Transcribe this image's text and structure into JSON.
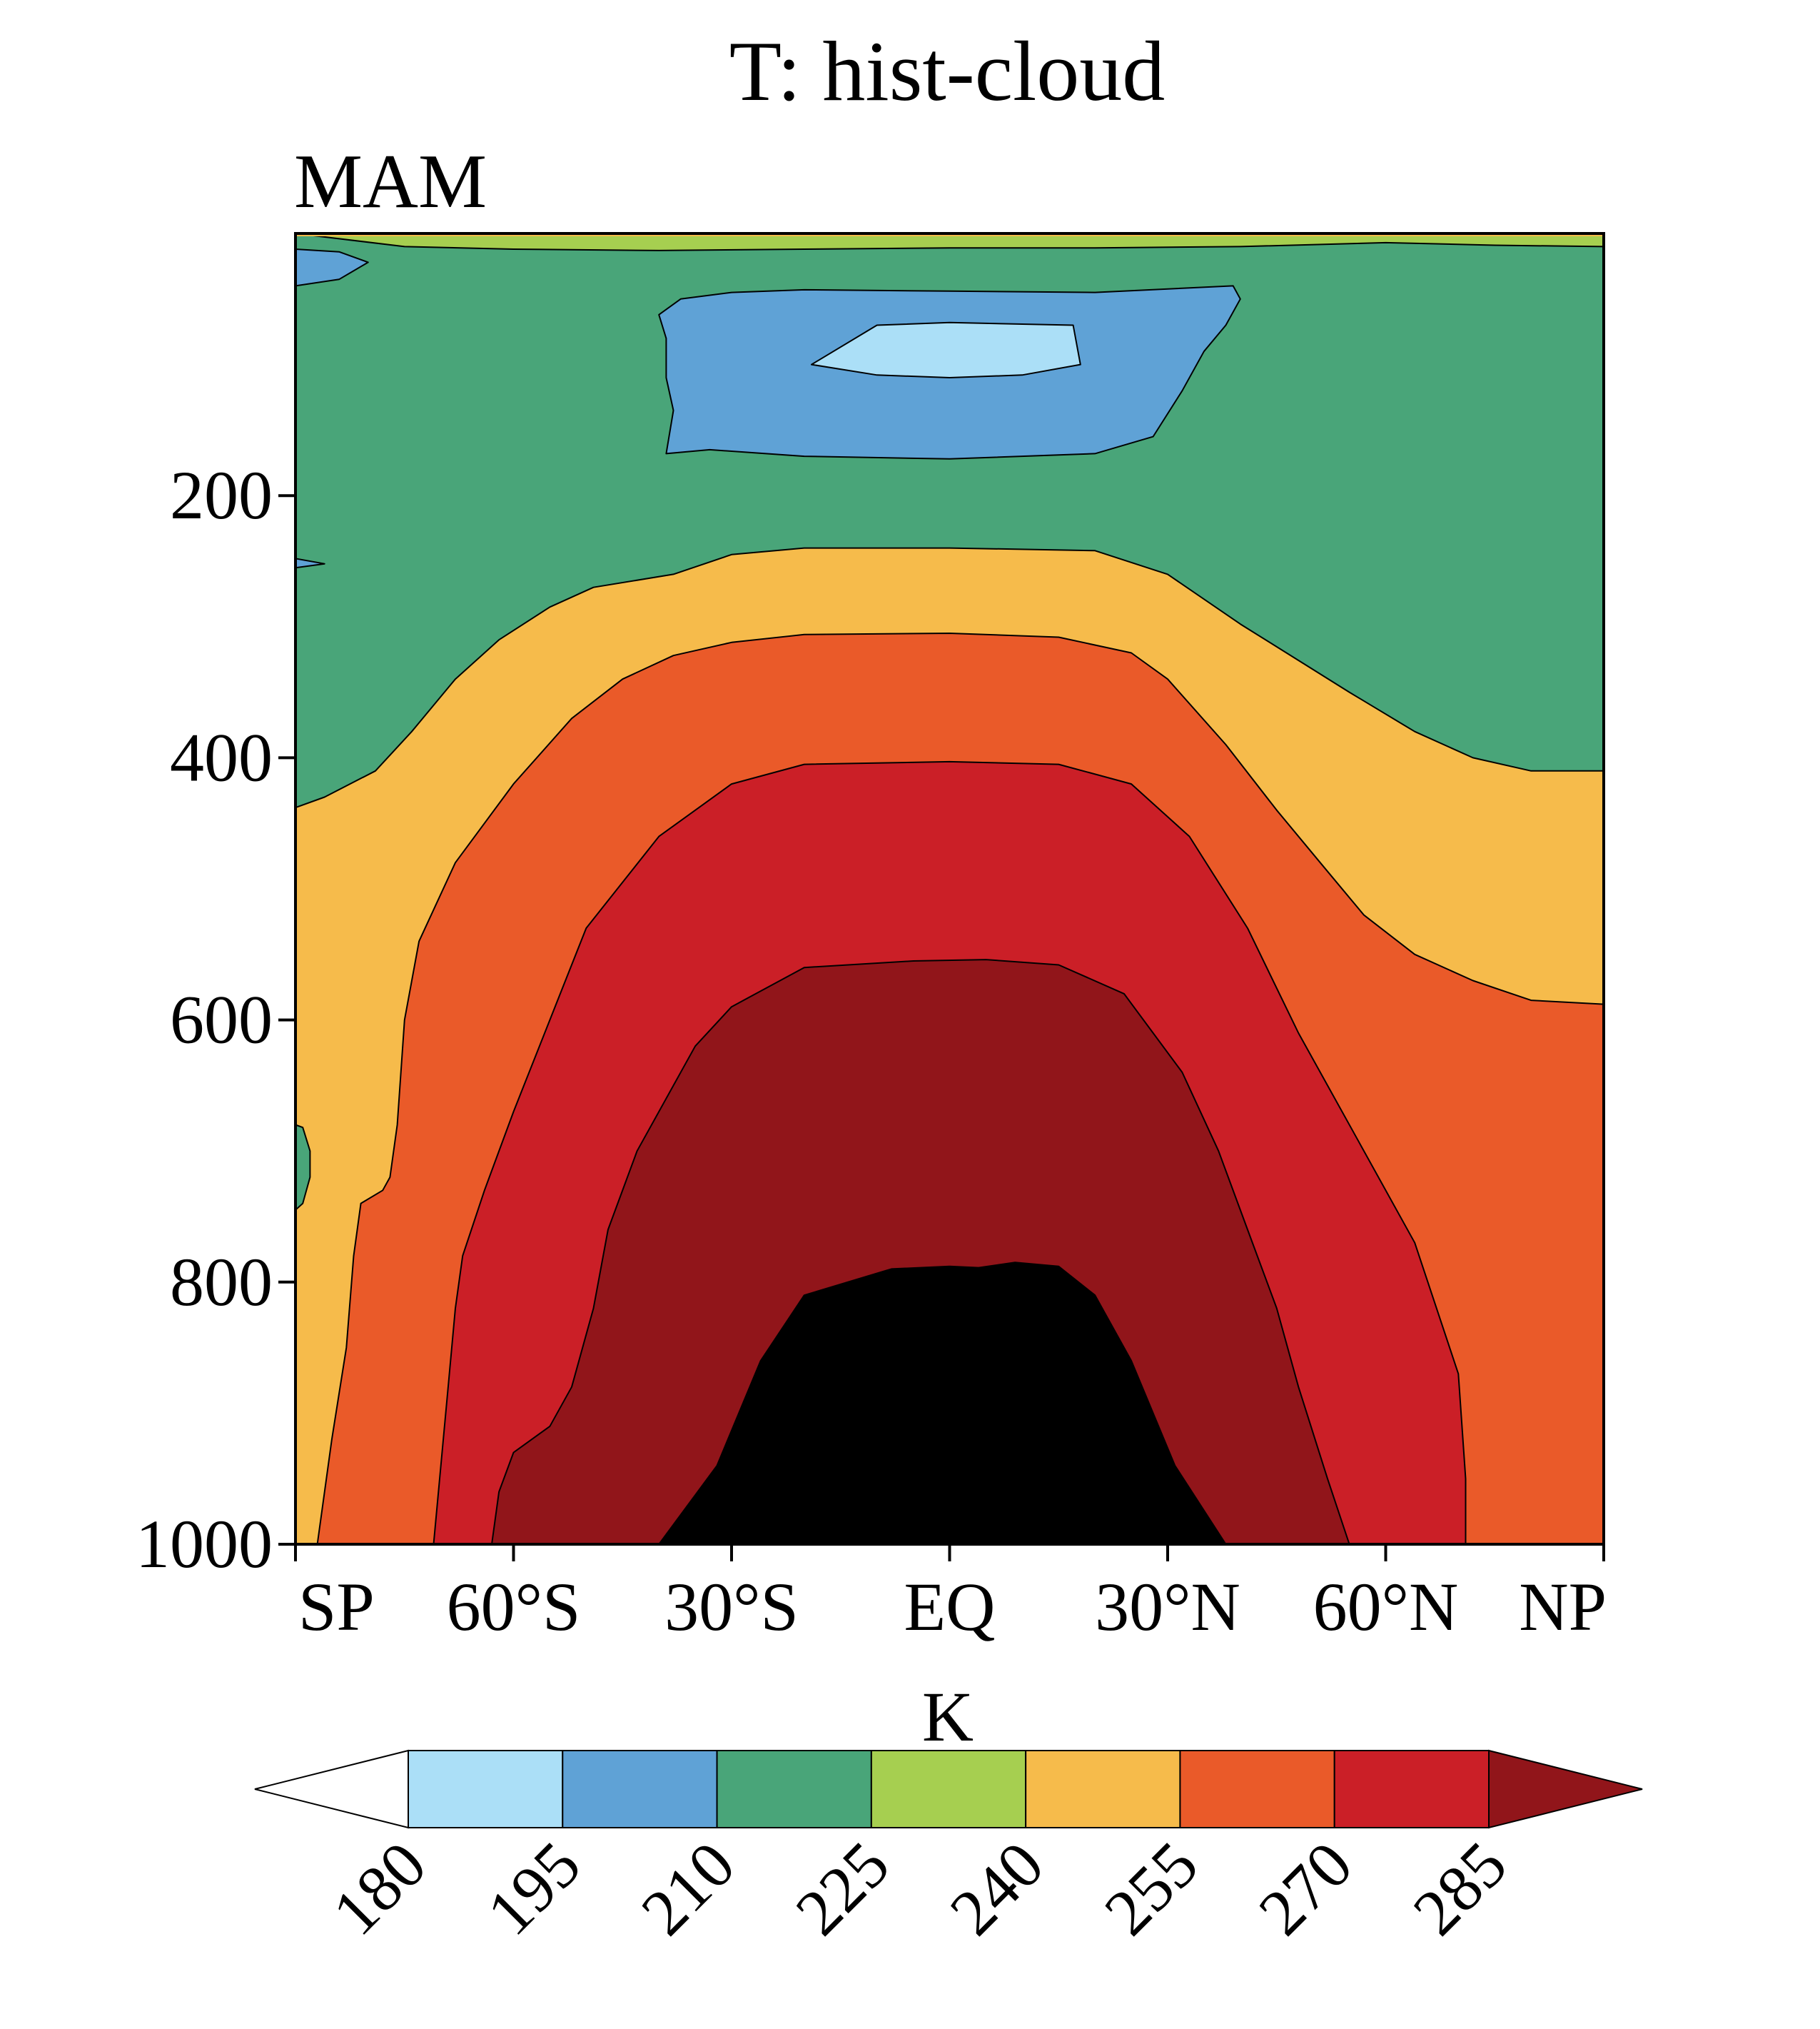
{
  "chart_data": {
    "type": "filled-contour",
    "title": "T: hist-cloud",
    "subtitle": "MAM",
    "ylabel": "",
    "xlabel": "",
    "y_axis": {
      "reversed": true,
      "range": [
        0,
        1000
      ],
      "ticks": [
        200,
        400,
        600,
        800,
        1000
      ]
    },
    "x_axis": {
      "range": [
        -90,
        90
      ],
      "ticks": [
        {
          "value": -90,
          "label": "SP"
        },
        {
          "value": -60,
          "label": "60°S"
        },
        {
          "value": -30,
          "label": "30°S"
        },
        {
          "value": 0,
          "label": "EQ"
        },
        {
          "value": 30,
          "label": "30°N"
        },
        {
          "value": 60,
          "label": "60°N"
        },
        {
          "value": 90,
          "label": "NP"
        }
      ]
    },
    "colorbar": {
      "unit": "K",
      "levels": [
        180,
        195,
        210,
        225,
        240,
        255,
        270,
        285
      ],
      "colors": [
        "#ffffff",
        "#abdff7",
        "#5fa2d6",
        "#49a579",
        "#a6cf50",
        "#f6bb4b",
        "#ea5a29",
        "#cb1f27",
        "#91151a"
      ]
    },
    "contours": [
      {
        "level": 285,
        "points": [
          [
            -40,
            1000
          ],
          [
            -32,
            940
          ],
          [
            -26,
            860
          ],
          [
            -20,
            810
          ],
          [
            -8,
            790
          ],
          [
            0,
            788
          ],
          [
            4,
            789
          ],
          [
            9,
            785
          ],
          [
            15,
            788
          ],
          [
            20,
            810
          ],
          [
            25,
            860
          ],
          [
            31,
            940
          ],
          [
            38,
            1000
          ]
        ]
      },
      {
        "level": 270,
        "points": [
          [
            -63,
            1000
          ],
          [
            -62,
            960
          ],
          [
            -60,
            930
          ],
          [
            -55,
            910
          ],
          [
            -52,
            880
          ],
          [
            -49,
            820
          ],
          [
            -47,
            760
          ],
          [
            -43,
            700
          ],
          [
            -35,
            620
          ],
          [
            -30,
            590
          ],
          [
            -20,
            560
          ],
          [
            -5,
            555
          ],
          [
            5,
            554
          ],
          [
            15,
            558
          ],
          [
            24,
            580
          ],
          [
            32,
            640
          ],
          [
            37,
            700
          ],
          [
            41,
            760
          ],
          [
            45,
            820
          ],
          [
            48,
            880
          ],
          [
            52,
            950
          ],
          [
            55,
            1000
          ]
        ]
      },
      {
        "level": 255,
        "points": [
          [
            -71,
            1000
          ],
          [
            -70,
            940
          ],
          [
            -69,
            880
          ],
          [
            -68,
            820
          ],
          [
            -67,
            780
          ],
          [
            -64,
            730
          ],
          [
            -60,
            670
          ],
          [
            -55,
            600
          ],
          [
            -50,
            530
          ],
          [
            -40,
            460
          ],
          [
            -30,
            420
          ],
          [
            -20,
            405
          ],
          [
            0,
            403
          ],
          [
            15,
            405
          ],
          [
            25,
            420
          ],
          [
            33,
            460
          ],
          [
            41,
            530
          ],
          [
            48,
            610
          ],
          [
            56,
            690
          ],
          [
            64,
            770
          ],
          [
            70,
            870
          ],
          [
            71,
            950
          ],
          [
            71,
            1000
          ]
        ]
      },
      {
        "level": 240,
        "points": [
          [
            -87,
            1000
          ],
          [
            -85,
            920
          ],
          [
            -83,
            850
          ],
          [
            -82,
            780
          ],
          [
            -81,
            740
          ],
          [
            -78,
            730
          ],
          [
            -77,
            720
          ],
          [
            -76,
            680
          ],
          [
            -75,
            600
          ],
          [
            -73,
            540
          ],
          [
            -68,
            480
          ],
          [
            -60,
            420
          ],
          [
            -52,
            370
          ],
          [
            -45,
            340
          ],
          [
            -38,
            322
          ],
          [
            -30,
            312
          ],
          [
            -20,
            306
          ],
          [
            0,
            305
          ],
          [
            15,
            308
          ],
          [
            25,
            320
          ],
          [
            30,
            340
          ],
          [
            38,
            390
          ],
          [
            45,
            440
          ],
          [
            51,
            480
          ],
          [
            57,
            520
          ],
          [
            64,
            550
          ],
          [
            72,
            570
          ],
          [
            80,
            585
          ],
          [
            90,
            588
          ]
        ]
      },
      {
        "level": 225,
        "points": [
          [
            -90,
            438
          ],
          [
            -86,
            430
          ],
          [
            -79,
            410
          ],
          [
            -74,
            380
          ],
          [
            -68,
            340
          ],
          [
            -62,
            310
          ],
          [
            -55,
            285
          ],
          [
            -49,
            270
          ],
          [
            -38,
            260
          ],
          [
            -30,
            245
          ],
          [
            -20,
            240
          ],
          [
            0,
            240
          ],
          [
            20,
            242
          ],
          [
            30,
            260
          ],
          [
            40,
            298
          ],
          [
            55,
            350
          ],
          [
            64,
            380
          ],
          [
            72,
            400
          ],
          [
            80,
            410
          ],
          [
            90,
            410
          ]
        ]
      },
      {
        "level": 210,
        "points": [
          [
            -90,
            0
          ],
          [
            -75,
            10
          ],
          [
            -60,
            12
          ],
          [
            -40,
            13
          ],
          [
            -20,
            12
          ],
          [
            0,
            11
          ],
          [
            20,
            11
          ],
          [
            40,
            10
          ],
          [
            60,
            7
          ],
          [
            75,
            9
          ],
          [
            90,
            10
          ]
        ]
      },
      {
        "level": 195,
        "points": [
          [
            -39,
            168
          ],
          [
            -33,
            165
          ],
          [
            -20,
            170
          ],
          [
            0,
            172
          ],
          [
            20,
            168
          ],
          [
            28,
            155
          ],
          [
            32,
            120
          ],
          [
            35,
            90
          ],
          [
            38,
            70
          ],
          [
            40,
            50
          ],
          [
            39,
            40
          ],
          [
            20,
            45
          ],
          [
            0,
            44
          ],
          [
            -20,
            43
          ],
          [
            -30,
            45
          ],
          [
            -37,
            50
          ],
          [
            -40,
            62
          ],
          [
            -39,
            80
          ],
          [
            -39,
            110
          ],
          [
            -38,
            135
          ]
        ]
      },
      {
        "level": 180,
        "points": [
          [
            -19,
            100
          ],
          [
            -10,
            108
          ],
          [
            0,
            110
          ],
          [
            10,
            108
          ],
          [
            18,
            100
          ],
          [
            17,
            70
          ],
          [
            0,
            68
          ],
          [
            -10,
            70
          ]
        ]
      },
      {
        "level": 195,
        "points": [
          [
            -90,
            12
          ],
          [
            -84,
            14
          ],
          [
            -80,
            22
          ],
          [
            -84,
            35
          ],
          [
            -90,
            40
          ]
        ]
      }
    ],
    "small_regions": [
      {
        "level": 195,
        "points": [
          [
            -90,
            248
          ],
          [
            -86,
            252
          ],
          [
            -90,
            255
          ]
        ]
      },
      {
        "level": 210,
        "points": [
          [
            -90,
            680
          ],
          [
            -89,
            682
          ],
          [
            -88,
            700
          ],
          [
            -88,
            720
          ],
          [
            -89,
            740
          ],
          [
            -90,
            745
          ]
        ]
      }
    ]
  }
}
